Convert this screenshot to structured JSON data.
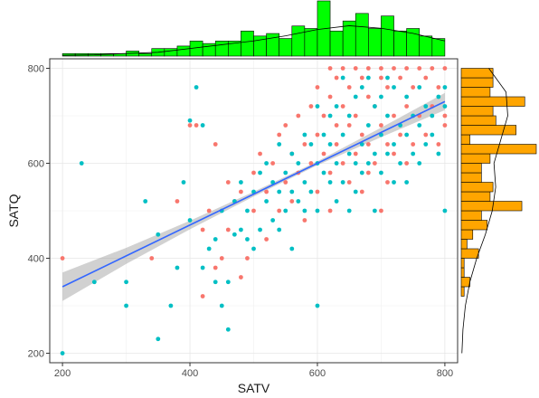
{
  "chart_data": [
    {
      "type": "scatter",
      "panel": "main",
      "xlabel": "SATV",
      "ylabel": "SATQ",
      "xlim": [
        180,
        820
      ],
      "ylim": [
        180,
        820
      ],
      "x_ticks": [
        200,
        400,
        600,
        800
      ],
      "y_ticks": [
        200,
        400,
        600,
        800
      ],
      "x_tick_labels": [
        "200",
        "400",
        "600",
        "800"
      ],
      "y_tick_labels": [
        "200",
        "400",
        "600",
        "800"
      ],
      "grid": true,
      "legend": "none",
      "series": [
        {
          "color": "#F8766D",
          "points": [
            [
              200,
              400
            ],
            [
              340,
              400
            ],
            [
              380,
              520
            ],
            [
              400,
              680
            ],
            [
              410,
              680
            ],
            [
              420,
              320
            ],
            [
              420,
              460
            ],
            [
              430,
              500
            ],
            [
              440,
              380
            ],
            [
              440,
              640
            ],
            [
              450,
              400
            ],
            [
              460,
              560
            ],
            [
              460,
              460
            ],
            [
              470,
              520
            ],
            [
              480,
              540
            ],
            [
              480,
              360
            ],
            [
              490,
              400
            ],
            [
              500,
              580
            ],
            [
              500,
              500
            ],
            [
              510,
              620
            ],
            [
              520,
              540
            ],
            [
              520,
              440
            ],
            [
              530,
              600
            ],
            [
              540,
              660
            ],
            [
              540,
              500
            ],
            [
              550,
              680
            ],
            [
              550,
              560
            ],
            [
              560,
              620
            ],
            [
              560,
              520
            ],
            [
              570,
              700
            ],
            [
              570,
              580
            ],
            [
              580,
              640
            ],
            [
              580,
              480
            ],
            [
              590,
              720
            ],
            [
              590,
              600
            ],
            [
              600,
              760
            ],
            [
              600,
              660
            ],
            [
              600,
              540
            ],
            [
              610,
              700
            ],
            [
              610,
              620
            ],
            [
              620,
              800
            ],
            [
              620,
              740
            ],
            [
              620,
              580
            ],
            [
              620,
              500
            ],
            [
              630,
              780
            ],
            [
              630,
              680
            ],
            [
              630,
              640
            ],
            [
              640,
              800
            ],
            [
              640,
              720
            ],
            [
              640,
              600
            ],
            [
              650,
              760
            ],
            [
              650,
              680
            ],
            [
              650,
              560
            ],
            [
              660,
              800
            ],
            [
              660,
              700
            ],
            [
              660,
              620
            ],
            [
              670,
              780
            ],
            [
              670,
              660
            ],
            [
              670,
              540
            ],
            [
              680,
              800
            ],
            [
              680,
              740
            ],
            [
              680,
              640
            ],
            [
              680,
              580
            ],
            [
              690,
              720
            ],
            [
              690,
              600
            ],
            [
              700,
              800
            ],
            [
              700,
              780
            ],
            [
              700,
              680
            ],
            [
              700,
              500
            ],
            [
              710,
              760
            ],
            [
              710,
              640
            ],
            [
              710,
              560
            ],
            [
              720,
              800
            ],
            [
              720,
              700
            ],
            [
              720,
              620
            ],
            [
              730,
              780
            ],
            [
              730,
              660
            ],
            [
              740,
              800
            ],
            [
              740,
              720
            ],
            [
              740,
              600
            ],
            [
              750,
              760
            ],
            [
              750,
              640
            ],
            [
              760,
              800
            ],
            [
              760,
              700
            ],
            [
              770,
              780
            ],
            [
              770,
              660
            ],
            [
              780,
              800
            ],
            [
              780,
              720
            ],
            [
              790,
              760
            ],
            [
              790,
              640
            ],
            [
              800,
              800
            ],
            [
              800,
              680
            ],
            [
              800,
              700
            ]
          ]
        },
        {
          "color": "#00BFC4",
          "points": [
            [
              200,
              200
            ],
            [
              230,
              600
            ],
            [
              250,
              350
            ],
            [
              300,
              350
            ],
            [
              300,
              300
            ],
            [
              330,
              520
            ],
            [
              350,
              230
            ],
            [
              350,
              450
            ],
            [
              370,
              300
            ],
            [
              380,
              380
            ],
            [
              390,
              560
            ],
            [
              400,
              480
            ],
            [
              400,
              690
            ],
            [
              410,
              760
            ],
            [
              420,
              380
            ],
            [
              420,
              680
            ],
            [
              430,
              420
            ],
            [
              440,
              440
            ],
            [
              440,
              350
            ],
            [
              450,
              300
            ],
            [
              450,
              500
            ],
            [
              460,
              250
            ],
            [
              460,
              350
            ],
            [
              470,
              520
            ],
            [
              470,
              450
            ],
            [
              480,
              460
            ],
            [
              480,
              560
            ],
            [
              490,
              500
            ],
            [
              490,
              440
            ],
            [
              500,
              540
            ],
            [
              500,
              420
            ],
            [
              510,
              580
            ],
            [
              510,
              460
            ],
            [
              520,
              520
            ],
            [
              520,
              600
            ],
            [
              530,
              560
            ],
            [
              530,
              480
            ],
            [
              540,
              640
            ],
            [
              540,
              540
            ],
            [
              540,
              460
            ],
            [
              550,
              580
            ],
            [
              550,
              500
            ],
            [
              560,
              620
            ],
            [
              560,
              540
            ],
            [
              560,
              420
            ],
            [
              570,
              600
            ],
            [
              570,
              520
            ],
            [
              580,
              660
            ],
            [
              580,
              560
            ],
            [
              580,
              500
            ],
            [
              590,
              640
            ],
            [
              590,
              540
            ],
            [
              600,
              600
            ],
            [
              600,
              720
            ],
            [
              600,
              500
            ],
            [
              600,
              300
            ],
            [
              610,
              580
            ],
            [
              610,
              660
            ],
            [
              620,
              640
            ],
            [
              620,
              560
            ],
            [
              620,
              700
            ],
            [
              630,
              600
            ],
            [
              630,
              720
            ],
            [
              630,
              520
            ],
            [
              640,
              660
            ],
            [
              640,
              560
            ],
            [
              640,
              780
            ],
            [
              650,
              620
            ],
            [
              650,
              700
            ],
            [
              650,
              500
            ],
            [
              660,
              600
            ],
            [
              660,
              740
            ],
            [
              660,
              540
            ],
            [
              670,
              640
            ],
            [
              670,
              760
            ],
            [
              670,
              580
            ],
            [
              680,
              680
            ],
            [
              680,
              600
            ],
            [
              680,
              780
            ],
            [
              690,
              620
            ],
            [
              690,
              720
            ],
            [
              690,
              500
            ],
            [
              700,
              660
            ],
            [
              700,
              740
            ],
            [
              700,
              580
            ],
            [
              710,
              620
            ],
            [
              710,
              700
            ],
            [
              710,
              780
            ],
            [
              720,
              640
            ],
            [
              720,
              760
            ],
            [
              720,
              560
            ],
            [
              730,
              680
            ],
            [
              730,
              600
            ],
            [
              740,
              660
            ],
            [
              740,
              740
            ],
            [
              740,
              560
            ],
            [
              750,
              700
            ],
            [
              750,
              620
            ],
            [
              760,
              680
            ],
            [
              760,
              760
            ],
            [
              760,
              600
            ],
            [
              770,
              640
            ],
            [
              770,
              720
            ],
            [
              780,
              700
            ],
            [
              780,
              660
            ],
            [
              790,
              740
            ],
            [
              790,
              620
            ],
            [
              800,
              720
            ],
            [
              800,
              760
            ],
            [
              800,
              500
            ]
          ]
        }
      ],
      "regression": {
        "color": "#3366FF",
        "ribbon_color": "#999999",
        "x": [
          200,
          300,
          400,
          500,
          600,
          700,
          800
        ],
        "y": [
          340,
          405,
          470,
          535,
          600,
          665,
          730
        ],
        "ci_low": [
          310,
          388,
          461,
          530,
          596,
          655,
          712
        ],
        "ci_high": [
          370,
          422,
          479,
          540,
          604,
          675,
          748
        ]
      }
    },
    {
      "type": "bar",
      "panel": "top-marginal",
      "axis": "SATV",
      "fill": "#00FF00",
      "stroke": "#000000",
      "bin_width": 20,
      "bin_starts": [
        200,
        220,
        240,
        260,
        280,
        300,
        320,
        340,
        360,
        380,
        400,
        420,
        440,
        460,
        480,
        500,
        520,
        540,
        560,
        580,
        600,
        620,
        640,
        660,
        680,
        700,
        720,
        740,
        760,
        780
      ],
      "counts": [
        1,
        1,
        1,
        1,
        1,
        2,
        1,
        3,
        3,
        4,
        6,
        5,
        6,
        6,
        10,
        8,
        9,
        7,
        12,
        11,
        22,
        10,
        14,
        17,
        11,
        16,
        10,
        11,
        8,
        7
      ],
      "density_x": [
        200,
        250,
        300,
        350,
        400,
        450,
        500,
        550,
        600,
        650,
        700,
        750,
        800
      ],
      "density_y": [
        0.3,
        0.5,
        1,
        1.5,
        3,
        4.5,
        6,
        8,
        10.5,
        12,
        11,
        9,
        6
      ]
    },
    {
      "type": "bar",
      "panel": "right-marginal",
      "orientation": "horizontal",
      "axis": "SATQ",
      "fill": "#FFA500",
      "stroke": "#000000",
      "bin_width": 20,
      "bin_starts": [
        200,
        220,
        240,
        260,
        280,
        300,
        320,
        340,
        360,
        380,
        400,
        420,
        440,
        460,
        480,
        500,
        520,
        540,
        560,
        580,
        600,
        620,
        640,
        660,
        680,
        700,
        720,
        740,
        760,
        780
      ],
      "counts": [
        0,
        0,
        0,
        0,
        0,
        0,
        1,
        3,
        1,
        1,
        6,
        2,
        4,
        9,
        7,
        21,
        10,
        11,
        7,
        7,
        10,
        26,
        3,
        19,
        12,
        11,
        22,
        10,
        11,
        11
      ],
      "density_y": [
        200,
        250,
        300,
        350,
        400,
        450,
        500,
        550,
        600,
        650,
        700,
        750,
        800
      ],
      "density_x": [
        0.2,
        0.5,
        1.2,
        2.5,
        4.5,
        7,
        9,
        10,
        9.5,
        11.5,
        13.5,
        13,
        8
      ]
    }
  ]
}
